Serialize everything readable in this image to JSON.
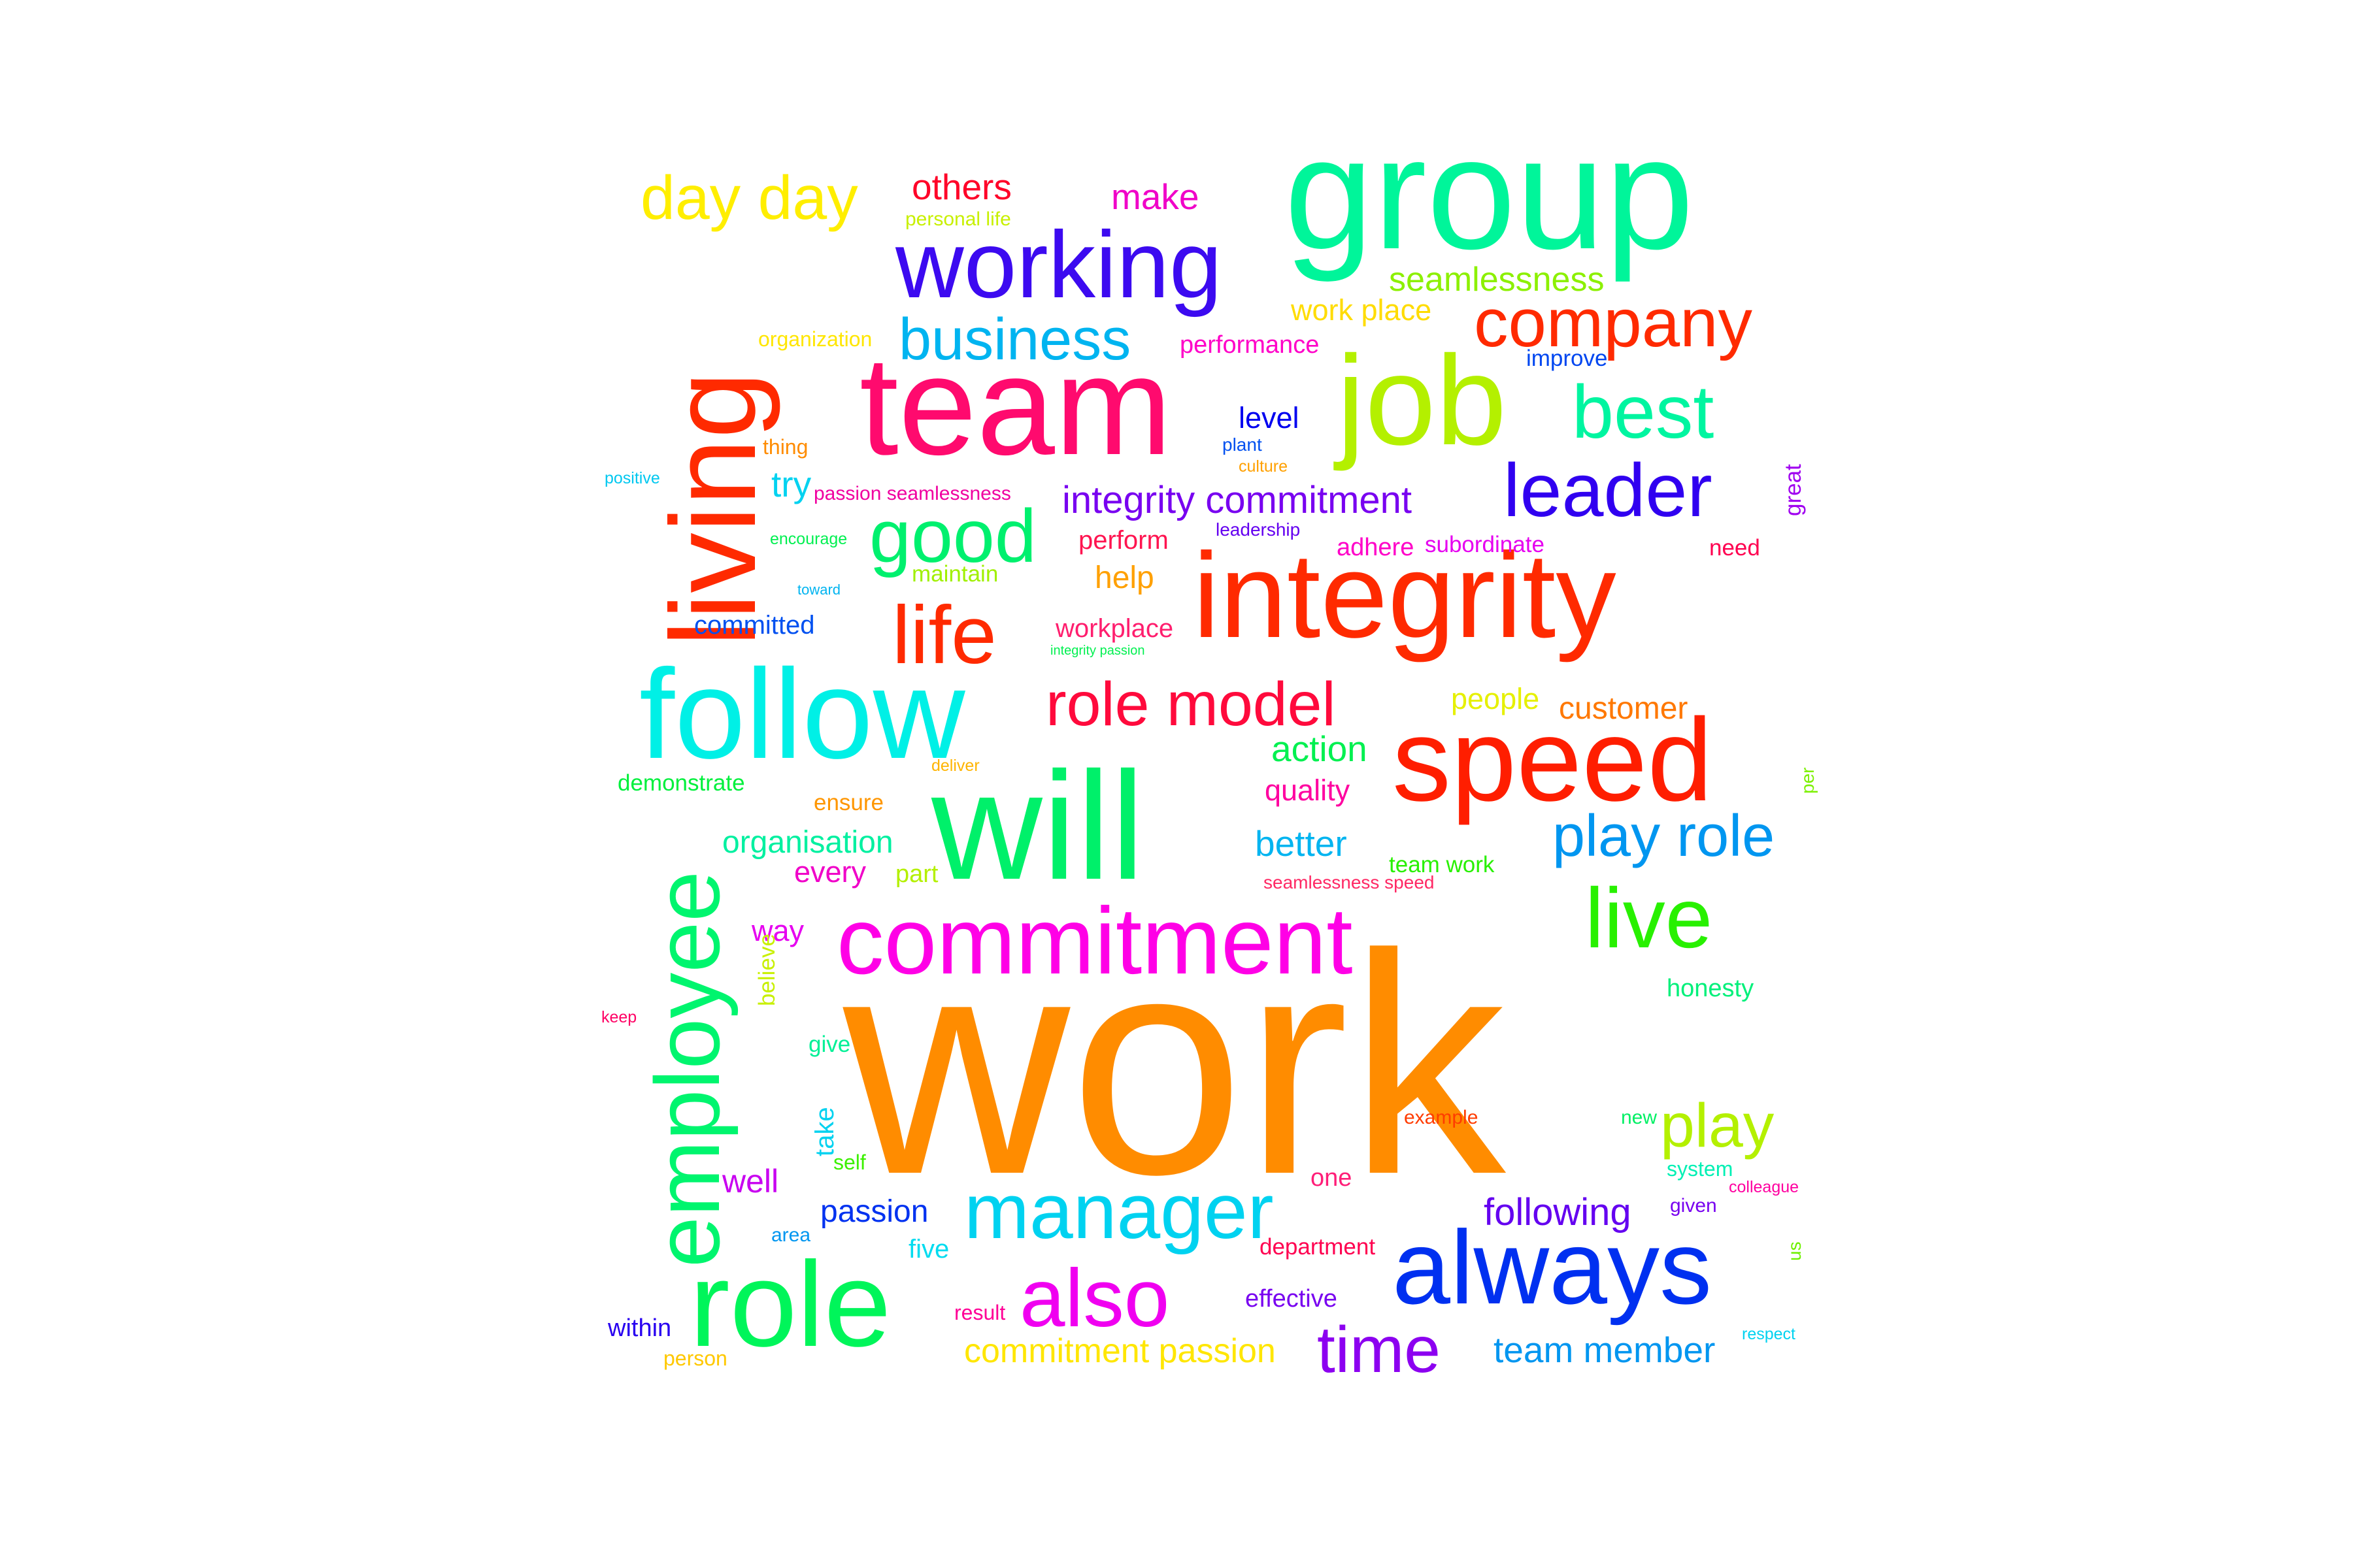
{
  "words": [
    {
      "text": "work",
      "color": "#ff8c00"
    },
    {
      "text": "group",
      "color": "#00f59a"
    },
    {
      "text": "team",
      "color": "#ff0a6e"
    },
    {
      "text": "living",
      "color": "#ff2a00"
    },
    {
      "text": "integrity",
      "color": "#ff2a00"
    },
    {
      "text": "will",
      "color": "#00f06a"
    },
    {
      "text": "follow",
      "color": "#00f0e6"
    },
    {
      "text": "job",
      "color": "#b4f000"
    },
    {
      "text": "speed",
      "color": "#ff1e00"
    },
    {
      "text": "role",
      "color": "#00f55a"
    },
    {
      "text": "always",
      "color": "#0030f0"
    },
    {
      "text": "commitment",
      "color": "#ff00e6"
    },
    {
      "text": "employee",
      "color": "#00f56e"
    },
    {
      "text": "working",
      "color": "#3c0af0"
    },
    {
      "text": "manager",
      "color": "#00d2f0"
    },
    {
      "text": "company",
      "color": "#ff2a00"
    },
    {
      "text": "leader",
      "color": "#3000f0"
    },
    {
      "text": "role model",
      "color": "#ff0a3c"
    },
    {
      "text": "life",
      "color": "#ff2a00"
    },
    {
      "text": "good",
      "color": "#00f06e"
    },
    {
      "text": "also",
      "color": "#f000f0"
    },
    {
      "text": "live",
      "color": "#28f000"
    },
    {
      "text": "best",
      "color": "#00f5a0"
    },
    {
      "text": "day day",
      "color": "#ffee00"
    },
    {
      "text": "play role",
      "color": "#0096f0"
    },
    {
      "text": "play",
      "color": "#b4f000"
    },
    {
      "text": "time",
      "color": "#8c00f0"
    },
    {
      "text": "business",
      "color": "#00b4f0"
    },
    {
      "text": "integrity commitment",
      "color": "#7800f0"
    },
    {
      "text": "seamlessness",
      "color": "#8cf000"
    },
    {
      "text": "work place",
      "color": "#ffdc00"
    },
    {
      "text": "others",
      "color": "#ff0028"
    },
    {
      "text": "make",
      "color": "#f000c8"
    },
    {
      "text": "personal life",
      "color": "#c8f000"
    },
    {
      "text": "performance",
      "color": "#ff00c8"
    },
    {
      "text": "improve",
      "color": "#0046f0"
    },
    {
      "text": "organization",
      "color": "#ffe600"
    },
    {
      "text": "level",
      "color": "#0000f0"
    },
    {
      "text": "plant",
      "color": "#0050f0"
    },
    {
      "text": "culture",
      "color": "#ffa000"
    },
    {
      "text": "leadership",
      "color": "#6400f0"
    },
    {
      "text": "try",
      "color": "#00d2f0"
    },
    {
      "text": "passion seamlessness",
      "color": "#f000a0"
    },
    {
      "text": "thing",
      "color": "#ff8c00"
    },
    {
      "text": "positive",
      "color": "#00c8f0"
    },
    {
      "text": "perform",
      "color": "#ff1450"
    },
    {
      "text": "maintain",
      "color": "#a0f000"
    },
    {
      "text": "help",
      "color": "#ffa000"
    },
    {
      "text": "encourage",
      "color": "#00f050"
    },
    {
      "text": "toward",
      "color": "#00b4f0"
    },
    {
      "text": "committed",
      "color": "#0050f0"
    },
    {
      "text": "adhere",
      "color": "#ff00c8"
    },
    {
      "text": "subordinate",
      "color": "#e600f0"
    },
    {
      "text": "need",
      "color": "#ff0050"
    },
    {
      "text": "workplace",
      "color": "#ff1e6e"
    },
    {
      "text": "integrity passion",
      "color": "#00f050"
    },
    {
      "text": "people",
      "color": "#e6f000"
    },
    {
      "text": "customer",
      "color": "#ff7800"
    },
    {
      "text": "action",
      "color": "#00f050"
    },
    {
      "text": "quality",
      "color": "#ff00a0"
    },
    {
      "text": "demonstrate",
      "color": "#00f03c"
    },
    {
      "text": "ensure",
      "color": "#ff9600"
    },
    {
      "text": "deliver",
      "color": "#ffb400"
    },
    {
      "text": "better",
      "color": "#00b4f0"
    },
    {
      "text": "organisation",
      "color": "#00f0a0"
    },
    {
      "text": "every",
      "color": "#f000c8"
    },
    {
      "text": "part",
      "color": "#b4f000"
    },
    {
      "text": "team work",
      "color": "#28f000"
    },
    {
      "text": "seamlessness speed",
      "color": "#ff2864"
    },
    {
      "text": "way",
      "color": "#e600f0"
    },
    {
      "text": "believe",
      "color": "#c8f000"
    },
    {
      "text": "keep",
      "color": "#ff0064"
    },
    {
      "text": "honesty",
      "color": "#00f07a"
    },
    {
      "text": "give",
      "color": "#00f096"
    },
    {
      "text": "well",
      "color": "#c800f0"
    },
    {
      "text": "take",
      "color": "#00d2f0"
    },
    {
      "text": "self",
      "color": "#3cf000"
    },
    {
      "text": "passion",
      "color": "#0032f0"
    },
    {
      "text": "area",
      "color": "#0096f0"
    },
    {
      "text": "five",
      "color": "#00dcf0"
    },
    {
      "text": "example",
      "color": "#ff3c00"
    },
    {
      "text": "one",
      "color": "#ff1e78"
    },
    {
      "text": "department",
      "color": "#ff0050"
    },
    {
      "text": "effective",
      "color": "#7800f0"
    },
    {
      "text": "following",
      "color": "#6400f0"
    },
    {
      "text": "given",
      "color": "#7800f0"
    },
    {
      "text": "system",
      "color": "#00f0b4"
    },
    {
      "text": "colleague",
      "color": "#ff00a0"
    },
    {
      "text": "new",
      "color": "#00f064"
    },
    {
      "text": "within",
      "color": "#2800f0"
    },
    {
      "text": "person",
      "color": "#ffc800"
    },
    {
      "text": "result",
      "color": "#ff0096"
    },
    {
      "text": "commitment passion",
      "color": "#ffe600"
    },
    {
      "text": "team member",
      "color": "#0096f0"
    },
    {
      "text": "respect",
      "color": "#00d2f0"
    },
    {
      "text": "great",
      "color": "#a000f0"
    },
    {
      "text": "per",
      "color": "#7cf000"
    },
    {
      "text": "us",
      "color": "#6ef000"
    }
  ]
}
